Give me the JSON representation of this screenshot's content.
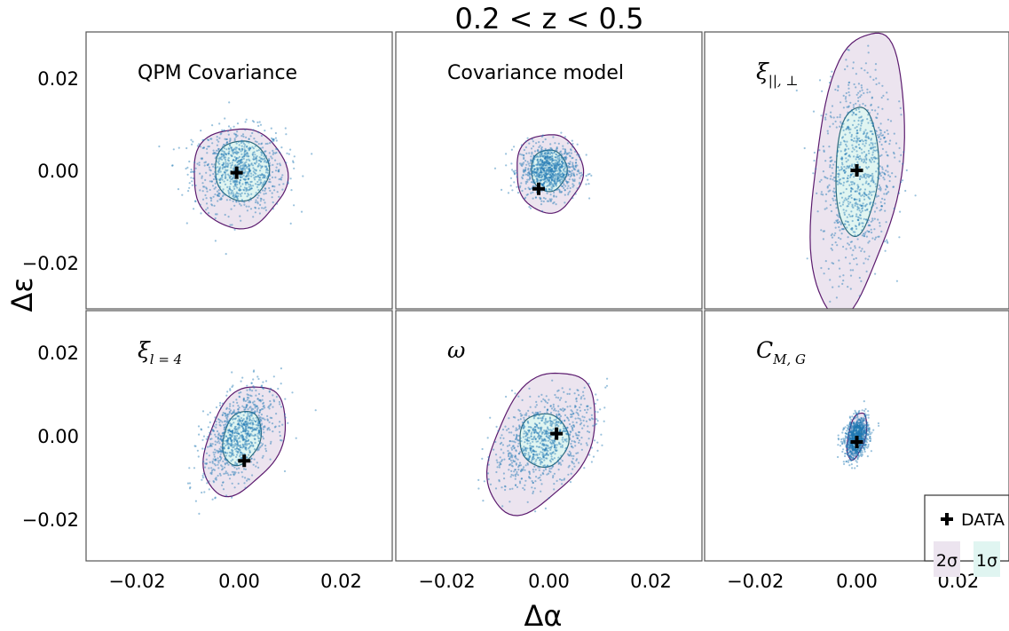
{
  "figure": {
    "title": "0.2 < z < 0.5",
    "xlabel": "Δα",
    "ylabel": "Δε"
  },
  "colors": {
    "contour_2sigma_fill": "#ece4ef",
    "contour_2sigma_line": "#5b1a6e",
    "contour_1sigma_fill": "#e0f5f1",
    "contour_1sigma_line": "#2f6b7c",
    "scatter_points": "#1f77b4",
    "data_marker": "#000000"
  },
  "legend": {
    "placement": "bottom-right",
    "data_label": "DATA",
    "two_sigma_label": "2σ",
    "one_sigma_label": "1σ"
  },
  "chart_data": [
    {
      "type": "scatter",
      "panel": "top-left",
      "title": "QPM Covariance",
      "xlim": [
        -0.03,
        0.03
      ],
      "ylim": [
        -0.03,
        0.03
      ],
      "xticks": [
        "−0.02",
        "0.00",
        "0.02"
      ],
      "yticks": [
        "0.02",
        "0.00",
        "−0.02"
      ],
      "data_point": {
        "x": -0.0005,
        "y": -0.0005
      },
      "samples": {
        "center_x": 0.0,
        "center_y": 0.0,
        "sigma_x": 0.0045,
        "sigma_y": 0.0045,
        "rho": 0.0
      },
      "contour_2sigma": {
        "center_x": 0.0,
        "center_y": -0.0015,
        "half_width": 0.0092,
        "half_height": 0.0108,
        "tilt_deg": 0
      },
      "contour_1sigma": {
        "center_x": 0.0005,
        "center_y": 0.0,
        "half_width": 0.0053,
        "half_height": 0.0065,
        "tilt_deg": 0
      }
    },
    {
      "type": "scatter",
      "panel": "top-middle",
      "title": "Covariance model",
      "xlim": [
        -0.03,
        0.03
      ],
      "ylim": [
        -0.03,
        0.03
      ],
      "xticks": [
        "−0.02",
        "0.00",
        "0.02"
      ],
      "yticks": [],
      "data_point": {
        "x": -0.002,
        "y": -0.004
      },
      "samples": {
        "center_x": 0.0,
        "center_y": 0.0,
        "sigma_x": 0.0028,
        "sigma_y": 0.0028,
        "rho": 0.0
      },
      "contour_2sigma": {
        "center_x": 0.0,
        "center_y": -0.0005,
        "half_width": 0.0065,
        "half_height": 0.0085,
        "tilt_deg": 0
      },
      "contour_1sigma": {
        "center_x": 0.0,
        "center_y": 0.0,
        "half_width": 0.0035,
        "half_height": 0.0045,
        "tilt_deg": 0
      }
    },
    {
      "type": "scatter",
      "panel": "top-right",
      "title_symbol": "ξ",
      "title_subscript": "||, ⊥",
      "xlim": [
        -0.03,
        0.03
      ],
      "ylim": [
        -0.03,
        0.03
      ],
      "xticks": [
        "−0.02",
        "0.00",
        "0.02"
      ],
      "yticks": [],
      "data_point": {
        "x": 0.0,
        "y": 0.0
      },
      "samples": {
        "center_x": 0.0,
        "center_y": 0.0,
        "sigma_x": 0.0035,
        "sigma_y": 0.011,
        "rho": 0.15
      },
      "contour_2sigma": {
        "center_x": 0.0,
        "center_y": 0.0,
        "half_width": 0.0085,
        "half_height": 0.031,
        "tilt_deg": 7
      },
      "contour_1sigma": {
        "center_x": 0.0,
        "center_y": 0.0,
        "half_width": 0.0042,
        "half_height": 0.014,
        "tilt_deg": 2
      }
    },
    {
      "type": "scatter",
      "panel": "bottom-left",
      "title_symbol": "ξ",
      "title_subscript": "l = 4",
      "xlim": [
        -0.03,
        0.03
      ],
      "ylim": [
        -0.03,
        0.03
      ],
      "xticks": [
        "−0.02",
        "0.00",
        "0.02"
      ],
      "yticks": [
        "0.02",
        "0.00",
        "−0.02"
      ],
      "data_point": {
        "x": 0.001,
        "y": -0.006
      },
      "samples": {
        "center_x": 0.0,
        "center_y": 0.0,
        "sigma_x": 0.0035,
        "sigma_y": 0.0055,
        "rho": 0.45
      },
      "contour_2sigma": {
        "center_x": 0.001,
        "center_y": -0.001,
        "half_width": 0.0072,
        "half_height": 0.0136,
        "tilt_deg": 18
      },
      "contour_1sigma": {
        "center_x": 0.0005,
        "center_y": -0.0005,
        "half_width": 0.0036,
        "half_height": 0.0066,
        "tilt_deg": 12
      }
    },
    {
      "type": "scatter",
      "panel": "bottom-middle",
      "title_symbol": "ω",
      "xlim": [
        -0.03,
        0.03
      ],
      "ylim": [
        -0.03,
        0.03
      ],
      "xticks": [
        "−0.02",
        "0.00",
        "0.02"
      ],
      "yticks": [],
      "data_point": {
        "x": 0.0015,
        "y": 0.0005
      },
      "samples": {
        "center_x": -0.001,
        "center_y": -0.001,
        "sigma_x": 0.005,
        "sigma_y": 0.0055,
        "rho": 0.45
      },
      "contour_2sigma": {
        "center_x": -0.0015,
        "center_y": -0.0015,
        "half_width": 0.0092,
        "half_height": 0.0178,
        "tilt_deg": 20
      },
      "contour_1sigma": {
        "center_x": -0.001,
        "center_y": -0.001,
        "half_width": 0.0048,
        "half_height": 0.0064,
        "tilt_deg": 0
      }
    },
    {
      "type": "scatter",
      "panel": "bottom-right",
      "title_symbol": "C",
      "title_subscript": "M, G",
      "xlim": [
        -0.03,
        0.03
      ],
      "ylim": [
        -0.03,
        0.03
      ],
      "xticks": [
        "−0.02",
        "0.00",
        "0.02"
      ],
      "yticks": [],
      "data_point": {
        "x": 0.0,
        "y": -0.0015
      },
      "samples": {
        "center_x": 0.0,
        "center_y": -0.0005,
        "sigma_x": 0.0012,
        "sigma_y": 0.0025,
        "rho": 0.3
      },
      "contour_2sigma": {
        "center_x": 0.0,
        "center_y": 0.0,
        "half_width": 0.0017,
        "half_height": 0.0057,
        "tilt_deg": 10
      },
      "contour_1sigma": {
        "center_x": 0.0,
        "center_y": -0.0005,
        "half_width": 0.0009,
        "half_height": 0.003,
        "tilt_deg": 5
      }
    }
  ]
}
